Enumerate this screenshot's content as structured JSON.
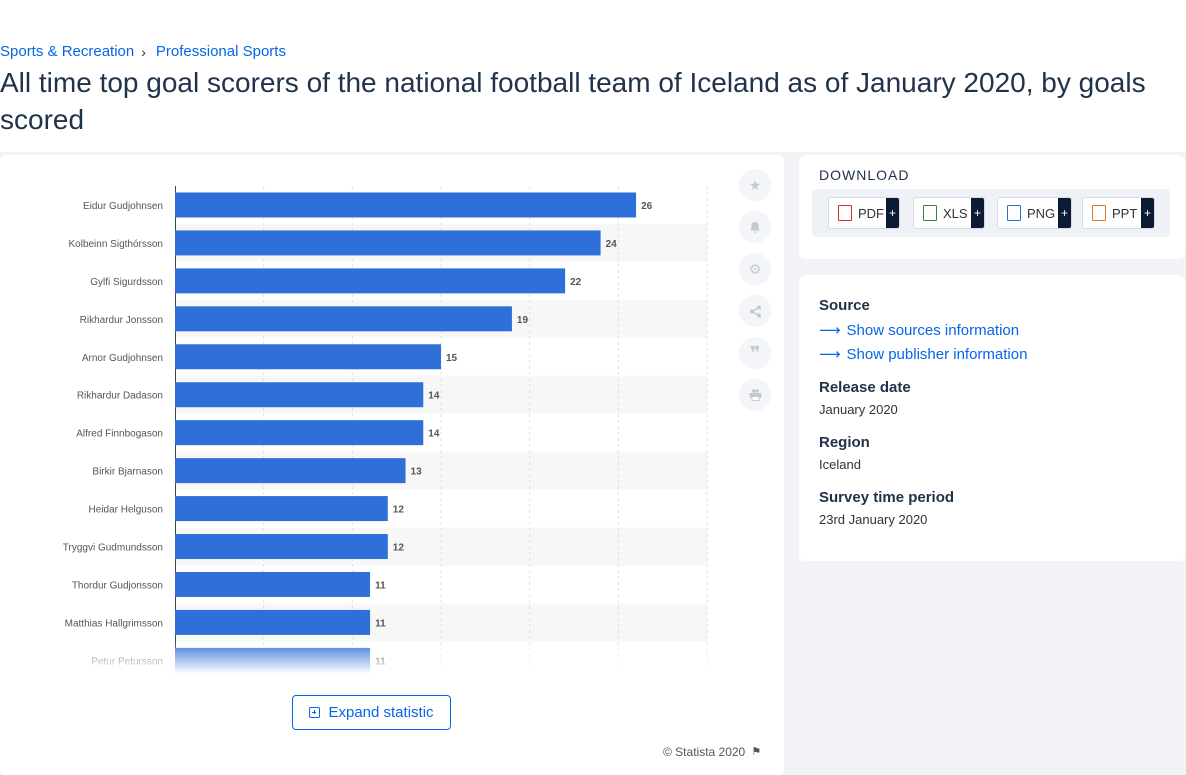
{
  "breadcrumb": {
    "items": [
      "Sports & Recreation",
      "Professional Sports"
    ],
    "separator": "›"
  },
  "page_title": "All time top goal scorers of the national football team of Iceland as of January 2020, by goals scored",
  "chart_data": {
    "type": "bar",
    "orientation": "horizontal",
    "title": "",
    "xlabel": "",
    "ylabel": "",
    "categories": [
      "Eidur Gudjohnsen",
      "Kolbeinn Sigthórsson",
      "Gylfi Sigurdsson",
      "Rikhardur Jonsson",
      "Arnor Gudjohnsen",
      "Rikhardur Dadason",
      "Alfred Finnbogason",
      "Birkir Bjarnason",
      "Heidar Helguson",
      "Tryggvi Gudmundsson",
      "Thordur Gudjonsson",
      "Matthias Hallgrimsson",
      "Petur Petursson"
    ],
    "values": [
      26,
      24,
      22,
      19,
      15,
      14,
      14,
      13,
      12,
      12,
      11,
      11,
      11
    ],
    "xlim": [
      0,
      30
    ],
    "grid": true,
    "data_labels": true,
    "bar_color": "#2f6fd9"
  },
  "tools": [
    "star-icon",
    "bell-icon",
    "gear-icon",
    "share-icon",
    "quote-icon",
    "print-icon"
  ],
  "expand_label": "Expand statistic",
  "copyright": "© Statista 2020",
  "download": {
    "heading": "DOWNLOAD",
    "buttons": [
      {
        "label": "PDF",
        "color": "#d9302c"
      },
      {
        "label": "XLS",
        "color": "#2e8a3e"
      },
      {
        "label": "PNG",
        "color": "#2f6fd9"
      },
      {
        "label": "PPT",
        "color": "#e07b24"
      }
    ],
    "plus": "+"
  },
  "meta": {
    "source_heading": "Source",
    "show_sources": "Show sources information",
    "show_publisher": "Show publisher information",
    "release_heading": "Release date",
    "release_value": "January 2020",
    "region_heading": "Region",
    "region_value": "Iceland",
    "period_heading": "Survey time period",
    "period_value": "23rd January 2020"
  }
}
